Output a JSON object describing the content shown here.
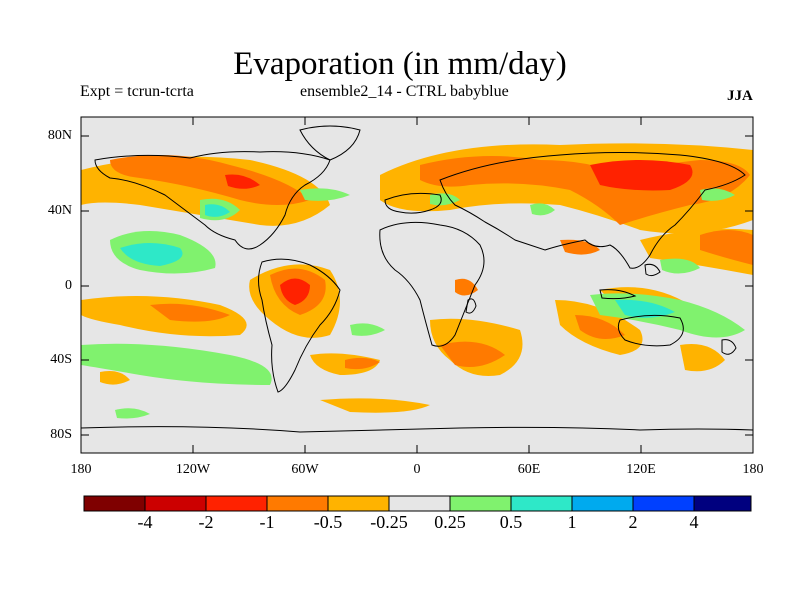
{
  "title": "Evaporation (in mm/day)",
  "subtitle_left": "Expt = tcrun-tcrta",
  "subtitle_center": "ensemble2_14 - CTRL babyblue",
  "season": "JJA",
  "y_ticks": [
    "80N",
    "40N",
    "0",
    "40S",
    "80S"
  ],
  "x_ticks": [
    "180",
    "120W",
    "60W",
    "0",
    "60E",
    "120E",
    "180"
  ],
  "colorbar": {
    "colors": [
      "#7f0000",
      "#cc0000",
      "#ff2200",
      "#ff7a00",
      "#ffb300",
      "#e6e6e6",
      "#80f26e",
      "#2ee8c8",
      "#00aaee",
      "#0040ff",
      "#00007f"
    ],
    "labels": [
      "-4",
      "-2",
      "-1",
      "-0.5",
      "-0.25",
      "0.25",
      "0.5",
      "1",
      "2",
      "4"
    ]
  },
  "colors": {
    "background_field": "#e6e6e6",
    "coast": "#000000"
  }
}
